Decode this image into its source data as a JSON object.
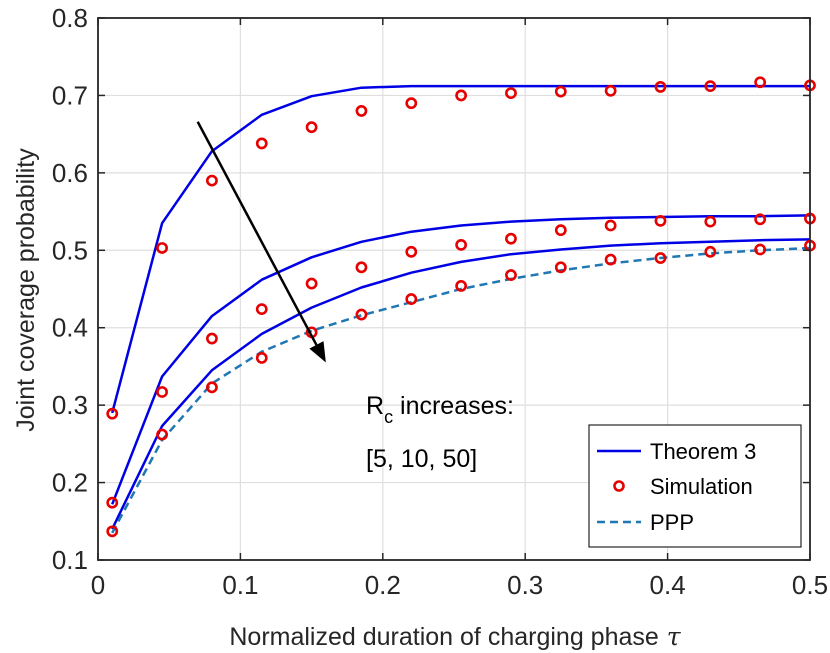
{
  "chart_data": {
    "type": "line",
    "xlabel": "Normalized duration of charging phase",
    "xlabel_symbol": "τ",
    "ylabel": "Joint coverage probability",
    "xlim": [
      0,
      0.5
    ],
    "ylim": [
      0.1,
      0.8
    ],
    "xticks": [
      0,
      0.1,
      0.2,
      0.3,
      0.4,
      0.5
    ],
    "xtick_labels": [
      "0",
      "0.1",
      "0.2",
      "0.3",
      "0.4",
      "0.5"
    ],
    "yticks": [
      0.1,
      0.2,
      0.3,
      0.4,
      0.5,
      0.6,
      0.7,
      0.8
    ],
    "ytick_labels": [
      "0.1",
      "0.2",
      "0.3",
      "0.4",
      "0.5",
      "0.6",
      "0.7",
      "0.8"
    ],
    "grid": true,
    "legend_position": "bottom-right",
    "x": [
      0.01,
      0.045,
      0.08,
      0.115,
      0.15,
      0.185,
      0.22,
      0.255,
      0.29,
      0.325,
      0.36,
      0.395,
      0.43,
      0.465,
      0.5
    ],
    "series": [
      {
        "name": "Theorem 3",
        "group": "Theorem 3",
        "style": "solid",
        "color": "#0000e6",
        "label_Rc": "5",
        "values": [
          0.29,
          0.535,
          0.628,
          0.675,
          0.699,
          0.71,
          0.712,
          0.712,
          0.712,
          0.712,
          0.712,
          0.712,
          0.712,
          0.712,
          0.712
        ]
      },
      {
        "name": "Theorem 3",
        "group": "Theorem 3",
        "style": "solid",
        "color": "#0000e6",
        "label_Rc": "10",
        "values": [
          0.172,
          0.337,
          0.415,
          0.462,
          0.491,
          0.511,
          0.524,
          0.532,
          0.537,
          0.54,
          0.542,
          0.543,
          0.544,
          0.544,
          0.545
        ]
      },
      {
        "name": "Theorem 3",
        "group": "Theorem 3",
        "style": "solid",
        "color": "#0000e6",
        "label_Rc": "50",
        "values": [
          0.14,
          0.273,
          0.345,
          0.392,
          0.426,
          0.452,
          0.471,
          0.485,
          0.495,
          0.501,
          0.506,
          0.509,
          0.511,
          0.513,
          0.514
        ]
      },
      {
        "name": "Simulation",
        "group": "Simulation",
        "style": "markers",
        "color": "#e60000",
        "label_Rc": "5",
        "values": [
          0.289,
          0.503,
          0.59,
          0.638,
          0.659,
          0.68,
          0.69,
          0.7,
          0.703,
          0.705,
          0.706,
          0.711,
          0.712,
          0.717,
          0.713
        ]
      },
      {
        "name": "Simulation",
        "group": "Simulation",
        "style": "markers",
        "color": "#e60000",
        "label_Rc": "10",
        "values": [
          0.174,
          0.317,
          0.386,
          0.424,
          0.457,
          0.478,
          0.498,
          0.507,
          0.515,
          0.526,
          0.532,
          0.538,
          0.537,
          0.54,
          0.541
        ]
      },
      {
        "name": "Simulation",
        "group": "Simulation",
        "style": "markers",
        "color": "#e60000",
        "label_Rc": "50",
        "values": [
          0.137,
          0.262,
          0.323,
          0.361,
          0.394,
          0.417,
          0.437,
          0.454,
          0.468,
          0.478,
          0.488,
          0.49,
          0.498,
          0.501,
          0.506
        ]
      },
      {
        "name": "PPP",
        "group": "PPP",
        "style": "dashed",
        "color": "#1f77b4",
        "values": [
          0.135,
          0.255,
          0.328,
          0.369,
          0.396,
          0.416,
          0.433,
          0.45,
          0.463,
          0.474,
          0.483,
          0.49,
          0.496,
          0.5,
          0.503
        ]
      }
    ],
    "legend": [
      {
        "label": "Theorem 3",
        "style": "solid",
        "color": "#0000e6"
      },
      {
        "label": "Simulation",
        "style": "markers",
        "color": "#e60000"
      },
      {
        "label": "PPP",
        "style": "dashed",
        "color": "#1f77b4"
      }
    ],
    "annotation": {
      "line1_main": "R",
      "line1_sub": "c",
      "line1_rest": " increases:",
      "line2": "[5, 10, 50]",
      "arrow_from": [
        0.07,
        0.666
      ],
      "arrow_to": [
        0.16,
        0.355
      ]
    }
  }
}
